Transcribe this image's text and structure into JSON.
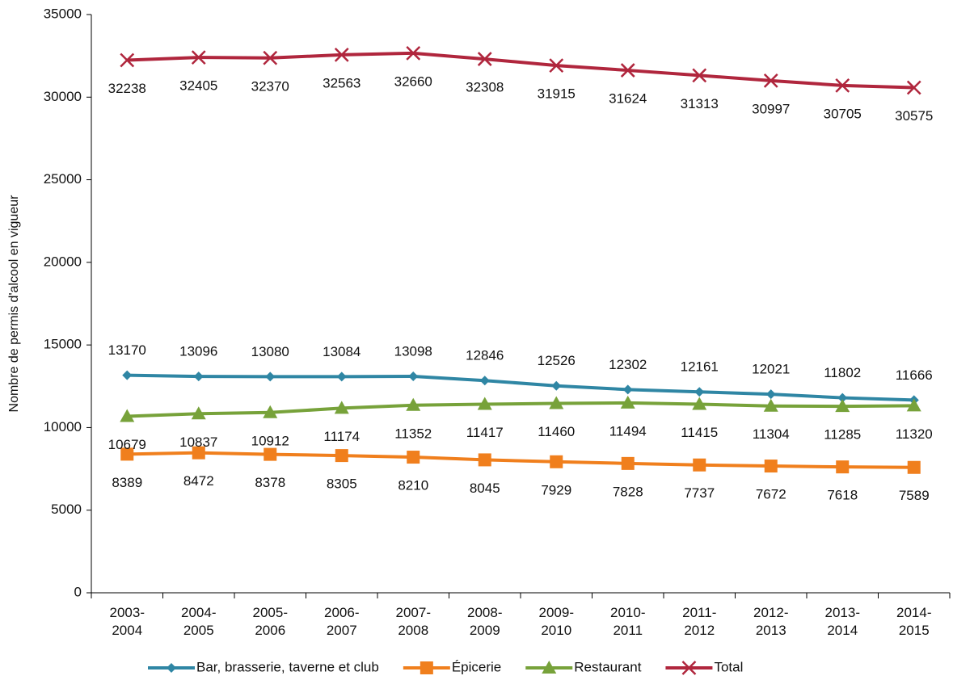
{
  "chart_data": {
    "type": "line",
    "y_label": "Nombre de permis d'alcool en vigueur",
    "categories": [
      "2003-2004",
      "2004-2005",
      "2005-2006",
      "2006-2007",
      "2007-2008",
      "2008-2009",
      "2009-2010",
      "2010-2011",
      "2011-2012",
      "2012-2013",
      "2013-2014",
      "2014-2015"
    ],
    "ylim": [
      0,
      35000
    ],
    "yticks": [
      0,
      5000,
      10000,
      15000,
      20000,
      25000,
      30000,
      35000
    ],
    "legend": "bottom",
    "series": [
      {
        "name": "Bar, brasserie, taverne et club",
        "color": "#2f86a4",
        "marker": "diamond",
        "label_position": "above",
        "values": [
          13170,
          13096,
          13080,
          13084,
          13098,
          12846,
          12526,
          12302,
          12161,
          12021,
          11802,
          11666
        ]
      },
      {
        "name": "Épicerie",
        "color": "#f07f1d",
        "marker": "square",
        "label_position": "below",
        "values": [
          8389,
          8472,
          8378,
          8305,
          8210,
          8045,
          7929,
          7828,
          7737,
          7672,
          7618,
          7589
        ]
      },
      {
        "name": "Restaurant",
        "color": "#77a23a",
        "marker": "triangle",
        "label_position": "below",
        "values": [
          10679,
          10837,
          10912,
          11174,
          11352,
          11417,
          11460,
          11494,
          11415,
          11304,
          11285,
          11320
        ]
      },
      {
        "name": "Total",
        "color": "#b0263d",
        "marker": "x",
        "label_position": "below",
        "values": [
          32238,
          32405,
          32370,
          32563,
          32660,
          32308,
          31915,
          31624,
          31313,
          30997,
          30705,
          30575
        ]
      }
    ]
  }
}
